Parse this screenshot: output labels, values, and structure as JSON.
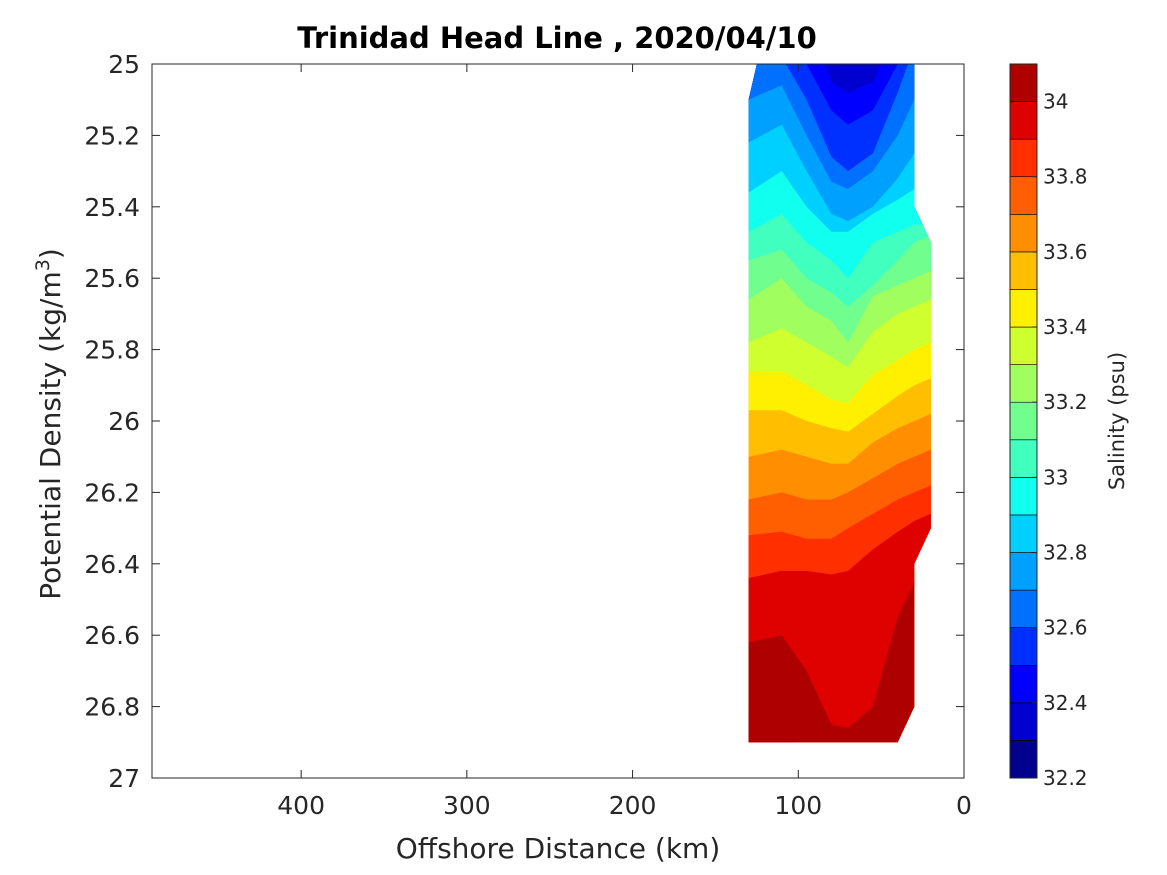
{
  "chart_data": {
    "type": "contour",
    "title": "Trinidad Head Line , 2020/04/10",
    "xlabel": "Offshore Distance (km)",
    "ylabel": "Potential Density (kg/m³)",
    "ylabel_parts": {
      "main": "Potential Density (kg/m",
      "sup": "3",
      "end": ")"
    },
    "xlim": [
      490,
      0
    ],
    "ylim": [
      25,
      27
    ],
    "x_reversed": true,
    "y_reversed": true,
    "xticks": [
      400,
      300,
      200,
      100,
      0
    ],
    "yticks": [
      25,
      25.2,
      25.4,
      25.6,
      25.8,
      26,
      26.2,
      26.4,
      26.6,
      26.8,
      27
    ],
    "grid": false,
    "colorbar": {
      "label": "Salinity (psu)",
      "range": [
        32.2,
        34.1
      ],
      "ticks": [
        32.2,
        32.4,
        32.6,
        32.8,
        33.0,
        33.2,
        33.4,
        33.6,
        33.8,
        34.0
      ],
      "tick_labels": [
        "32.2",
        "32.4",
        "32.6",
        "32.8",
        "33",
        "33.2",
        "33.4",
        "33.6",
        "33.8",
        "34"
      ],
      "levels": [
        32.2,
        32.3,
        32.4,
        32.5,
        32.6,
        32.7,
        32.8,
        32.9,
        33.0,
        33.1,
        33.2,
        33.3,
        33.4,
        33.5,
        33.6,
        33.7,
        33.8,
        33.9,
        34.0,
        34.1
      ],
      "colors": [
        "#00008f",
        "#0000cf",
        "#0000ff",
        "#0030ff",
        "#0070ff",
        "#00a0ff",
        "#00d0ff",
        "#10ffef",
        "#40ffbf",
        "#70ff8f",
        "#a0ff5f",
        "#d0ff2f",
        "#ffef00",
        "#ffbf00",
        "#ff8f00",
        "#ff5f00",
        "#ff2f00",
        "#df0000",
        "#af0000"
      ]
    },
    "data_extent": {
      "outline": [
        [
          130,
          25.1
        ],
        [
          125,
          25.0
        ],
        [
          30,
          25.0
        ],
        [
          30,
          25.4
        ],
        [
          20,
          25.5
        ],
        [
          20,
          26.3
        ],
        [
          30,
          26.4
        ],
        [
          30,
          26.8
        ],
        [
          40,
          26.9
        ],
        [
          130,
          26.9
        ]
      ]
    },
    "isolines": [
      {
        "level": 32.3,
        "x": [
          130,
          110,
          95,
          80,
          70,
          55,
          40,
          30,
          20
        ],
        "y": [
          24.6,
          24.6,
          24.7,
          24.8,
          24.8,
          24.8,
          24.7,
          24.6,
          24.6
        ]
      },
      {
        "level": 32.4,
        "x": [
          130,
          110,
          95,
          80,
          70,
          55,
          40,
          30,
          20
        ],
        "y": [
          24.7,
          24.75,
          24.85,
          25.05,
          25.08,
          25.05,
          24.9,
          24.75,
          24.7
        ]
      },
      {
        "level": 32.5,
        "x": [
          130,
          110,
          95,
          80,
          70,
          55,
          40,
          30,
          20
        ],
        "y": [
          24.8,
          24.9,
          25.0,
          25.13,
          25.17,
          25.13,
          25.0,
          24.85,
          24.8
        ]
      },
      {
        "level": 32.6,
        "x": [
          130,
          110,
          95,
          80,
          70,
          55,
          40,
          30,
          20
        ],
        "y": [
          24.95,
          24.98,
          25.1,
          25.26,
          25.3,
          25.25,
          25.08,
          24.95,
          24.9
        ]
      },
      {
        "level": 32.7,
        "x": [
          130,
          110,
          95,
          80,
          70,
          55,
          40,
          30,
          20
        ],
        "y": [
          25.1,
          25.06,
          25.2,
          25.33,
          25.35,
          25.3,
          25.2,
          25.1,
          25.0
        ]
      },
      {
        "level": 32.8,
        "x": [
          130,
          110,
          95,
          80,
          70,
          55,
          40,
          30,
          20
        ],
        "y": [
          25.22,
          25.17,
          25.3,
          25.42,
          25.44,
          25.4,
          25.32,
          25.25,
          25.2
        ]
      },
      {
        "level": 32.9,
        "x": [
          130,
          110,
          95,
          80,
          70,
          55,
          40,
          30,
          20
        ],
        "y": [
          25.36,
          25.3,
          25.4,
          25.47,
          25.47,
          25.42,
          25.38,
          25.35,
          25.33
        ]
      },
      {
        "level": 33.0,
        "x": [
          130,
          110,
          95,
          80,
          70,
          55,
          40,
          30,
          20
        ],
        "y": [
          25.47,
          25.42,
          25.5,
          25.55,
          25.6,
          25.5,
          25.47,
          25.45,
          25.45
        ]
      },
      {
        "level": 33.1,
        "x": [
          130,
          110,
          95,
          80,
          70,
          55,
          40,
          30,
          20
        ],
        "y": [
          25.55,
          25.52,
          25.6,
          25.64,
          25.68,
          25.62,
          25.55,
          25.5,
          25.48
        ]
      },
      {
        "level": 33.2,
        "x": [
          130,
          110,
          95,
          80,
          70,
          55,
          40,
          30,
          20
        ],
        "y": [
          25.66,
          25.6,
          25.68,
          25.72,
          25.78,
          25.65,
          25.62,
          25.6,
          25.58
        ]
      },
      {
        "level": 33.3,
        "x": [
          130,
          110,
          95,
          80,
          70,
          55,
          40,
          30,
          20
        ],
        "y": [
          25.78,
          25.74,
          25.78,
          25.82,
          25.85,
          25.75,
          25.7,
          25.68,
          25.66
        ]
      },
      {
        "level": 33.4,
        "x": [
          130,
          110,
          95,
          80,
          70,
          55,
          40,
          30,
          20
        ],
        "y": [
          25.86,
          25.86,
          25.9,
          25.94,
          25.95,
          25.87,
          25.83,
          25.8,
          25.78
        ]
      },
      {
        "level": 33.5,
        "x": [
          130,
          110,
          95,
          80,
          70,
          55,
          40,
          30,
          20
        ],
        "y": [
          25.97,
          25.97,
          26.0,
          26.02,
          26.03,
          25.98,
          25.93,
          25.9,
          25.88
        ]
      },
      {
        "level": 33.6,
        "x": [
          130,
          110,
          95,
          80,
          70,
          55,
          40,
          30,
          20
        ],
        "y": [
          26.1,
          26.08,
          26.1,
          26.12,
          26.12,
          26.06,
          26.02,
          26.0,
          25.98
        ]
      },
      {
        "level": 33.7,
        "x": [
          130,
          110,
          95,
          80,
          70,
          55,
          40,
          30,
          20
        ],
        "y": [
          26.22,
          26.2,
          26.22,
          26.22,
          26.2,
          26.16,
          26.12,
          26.1,
          26.08
        ]
      },
      {
        "level": 33.8,
        "x": [
          130,
          110,
          95,
          80,
          70,
          55,
          40,
          30,
          20
        ],
        "y": [
          26.32,
          26.31,
          26.33,
          26.33,
          26.3,
          26.26,
          26.22,
          26.2,
          26.18
        ]
      },
      {
        "level": 33.9,
        "x": [
          130,
          110,
          95,
          80,
          70,
          55,
          40,
          30,
          20
        ],
        "y": [
          26.44,
          26.42,
          26.42,
          26.43,
          26.42,
          26.36,
          26.31,
          26.28,
          26.26
        ]
      },
      {
        "level": 34.0,
        "x": [
          130,
          110,
          95,
          80,
          70,
          55,
          40,
          30,
          20
        ],
        "y": [
          26.62,
          26.6,
          26.7,
          26.85,
          26.86,
          26.8,
          26.55,
          26.45,
          26.4
        ]
      },
      {
        "level": 34.1,
        "x": [
          130,
          110,
          95,
          80,
          70,
          55,
          40,
          30,
          20
        ],
        "y": [
          26.8,
          26.85,
          26.95,
          27.05,
          27.05,
          27.0,
          26.95,
          26.9,
          26.9
        ]
      }
    ]
  }
}
